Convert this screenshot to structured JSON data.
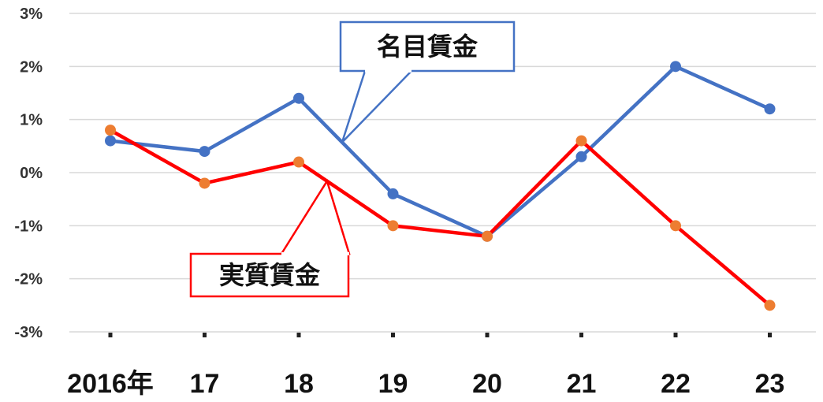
{
  "chart_data": {
    "type": "line",
    "categories": [
      "2016年",
      "17",
      "18",
      "19",
      "20",
      "21",
      "22",
      "23"
    ],
    "series": [
      {
        "name": "名目賃金",
        "values": [
          0.6,
          0.4,
          1.4,
          -0.4,
          -1.2,
          0.3,
          2.0,
          1.2
        ],
        "color": "#4472C4",
        "marker_color": "#4472C4"
      },
      {
        "name": "実質賃金",
        "values": [
          0.8,
          -0.2,
          0.2,
          -1.0,
          -1.2,
          0.6,
          -1.0,
          -2.5
        ],
        "color": "#FF0000",
        "marker_color": "#ED7D31"
      }
    ],
    "ylim": [
      -3,
      3
    ],
    "yticks": [
      3,
      2,
      1,
      0,
      -1,
      -2,
      -3
    ],
    "ytick_labels": [
      "3%",
      "2%",
      "1%",
      "0%",
      "-1%",
      "-2%",
      "-3%"
    ],
    "grid": true,
    "annotations": [
      {
        "text": "名目賃金",
        "series": "名目賃金",
        "border_color": "#4472C4"
      },
      {
        "text": "実質賃金",
        "series": "実質賃金",
        "border_color": "#FF0000"
      }
    ]
  }
}
